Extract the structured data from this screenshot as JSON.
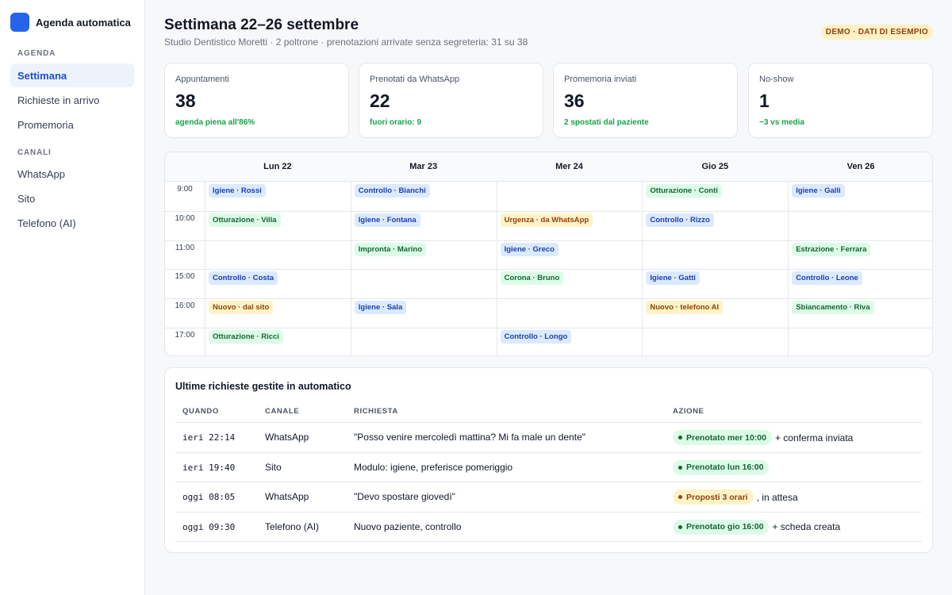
{
  "app": {
    "name": "Agenda automatica",
    "brand_color": "#2563eb"
  },
  "sidebar": {
    "sections": [
      {
        "title": "AGENDA",
        "items": [
          {
            "label": "Settimana",
            "active": true
          },
          {
            "label": "Richieste in arrivo"
          },
          {
            "label": "Promemoria"
          }
        ]
      },
      {
        "title": "CANALI",
        "items": [
          {
            "label": "WhatsApp"
          },
          {
            "label": "Sito"
          },
          {
            "label": "Telefono (AI)"
          }
        ]
      }
    ]
  },
  "header": {
    "title": "Settimana 22–26 settembre",
    "subtitle": "Studio Dentistico Moretti · 2 poltrone · prenotazioni arrivate senza segreteria: 31 su 38",
    "badge": "DEMO · DATI DI ESEMPIO"
  },
  "stats": [
    {
      "label": "Appuntamenti",
      "value": "38",
      "note": "agenda piena all'86%"
    },
    {
      "label": "Prenotati da WhatsApp",
      "value": "22",
      "note": "fuori orario: 9"
    },
    {
      "label": "Promemoria inviati",
      "value": "36",
      "note": "2 spostati dal paziente"
    },
    {
      "label": "No-show",
      "value": "1",
      "note": "−3 vs media"
    }
  ],
  "calendar": {
    "days": [
      "Lun 22",
      "Mar 23",
      "Mer 24",
      "Gio 25",
      "Ven 26"
    ],
    "times": [
      "9:00",
      "10:00",
      "11:00",
      "15:00",
      "16:00",
      "17:00"
    ],
    "appointments": [
      {
        "day": 0,
        "slot": 0,
        "label": "Igiene · Rossi",
        "color": "blue"
      },
      {
        "day": 1,
        "slot": 0,
        "label": "Controllo · Bianchi",
        "color": "blue"
      },
      {
        "day": 3,
        "slot": 0,
        "label": "Otturazione · Conti",
        "color": "green"
      },
      {
        "day": 4,
        "slot": 0,
        "label": "Igiene · Galli",
        "color": "blue"
      },
      {
        "day": 0,
        "slot": 1,
        "label": "Otturazione · Villa",
        "color": "green"
      },
      {
        "day": 1,
        "slot": 1,
        "label": "Igiene · Fontana",
        "color": "blue"
      },
      {
        "day": 2,
        "slot": 1,
        "label": "Urgenza · da WhatsApp",
        "color": "yellow"
      },
      {
        "day": 3,
        "slot": 1,
        "label": "Controllo · Rizzo",
        "color": "blue"
      },
      {
        "day": 1,
        "slot": 2,
        "label": "Impronta · Marino",
        "color": "green"
      },
      {
        "day": 2,
        "slot": 2,
        "label": "Igiene · Greco",
        "color": "blue"
      },
      {
        "day": 4,
        "slot": 2,
        "label": "Estrazione · Ferrara",
        "color": "green"
      },
      {
        "day": 0,
        "slot": 3,
        "label": "Controllo · Costa",
        "color": "blue"
      },
      {
        "day": 2,
        "slot": 3,
        "label": "Corona · Bruno",
        "color": "green"
      },
      {
        "day": 3,
        "slot": 3,
        "label": "Igiene · Gatti",
        "color": "blue"
      },
      {
        "day": 4,
        "slot": 3,
        "label": "Controllo · Leone",
        "color": "blue"
      },
      {
        "day": 0,
        "slot": 4,
        "label": "Nuovo · dal sito",
        "color": "yellow"
      },
      {
        "day": 1,
        "slot": 4,
        "label": "Igiene · Sala",
        "color": "blue"
      },
      {
        "day": 3,
        "slot": 4,
        "label": "Nuovo · telefono AI",
        "color": "yellow"
      },
      {
        "day": 4,
        "slot": 4,
        "label": "Sbiancamento · Riva",
        "color": "green"
      },
      {
        "day": 0,
        "slot": 5,
        "label": "Otturazione · Ricci",
        "color": "green"
      },
      {
        "day": 2,
        "slot": 5,
        "label": "Controllo · Longo",
        "color": "blue"
      }
    ]
  },
  "requests": {
    "title": "Ultime richieste gestite in automatico",
    "columns": [
      "QUANDO",
      "CANALE",
      "RICHIESTA",
      "AZIONE"
    ],
    "rows": [
      {
        "when": "ieri 22:14",
        "channel": "WhatsApp",
        "request": "\"Posso venire mercoledì mattina? Mi fa male un dente\"",
        "pill": "Prenotato mer 10:00",
        "pill_color": "green",
        "suffix": "+ conferma inviata"
      },
      {
        "when": "ieri 19:40",
        "channel": "Sito",
        "request": "Modulo: igiene, preferisce pomeriggio",
        "pill": "Prenotato lun 16:00",
        "pill_color": "green",
        "suffix": ""
      },
      {
        "when": "oggi 08:05",
        "channel": "WhatsApp",
        "request": "\"Devo spostare giovedì\"",
        "pill": "Proposti 3 orari",
        "pill_color": "yellow",
        "suffix": ", in attesa"
      },
      {
        "when": "oggi 09:30",
        "channel": "Telefono (AI)",
        "request": "Nuovo paziente, controllo",
        "pill": "Prenotato gio 16:00",
        "pill_color": "green",
        "suffix": "+ scheda creata"
      }
    ]
  }
}
